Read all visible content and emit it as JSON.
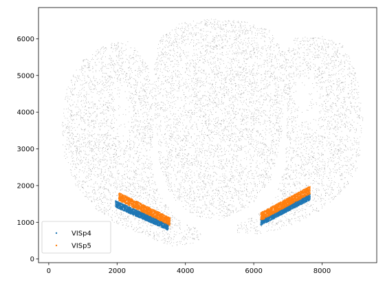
{
  "chart_data": {
    "type": "scatter",
    "title": "",
    "xlabel": "",
    "ylabel": "",
    "xlim": [
      -300,
      9600
    ],
    "ylim": [
      -100,
      6850
    ],
    "x_ticks": [
      0,
      2000,
      4000,
      6000,
      8000
    ],
    "y_ticks": [
      0,
      1000,
      2000,
      3000,
      4000,
      5000,
      6000
    ],
    "grid": false,
    "legend_position": "lower-left",
    "background_cells": {
      "color": "#808080",
      "description_region": "brain section outline",
      "x_range": [
        250,
        9200
      ],
      "y_range": [
        300,
        6550
      ]
    },
    "series": [
      {
        "name": "VISp4",
        "color": "#1f77b4",
        "bands": [
          {
            "x": [
              1950,
              3500
            ],
            "y_center_start": 1500,
            "y_center_end": 870,
            "half_width": 90
          },
          {
            "x": [
              6200,
              7650
            ],
            "y_center_start": 1000,
            "y_center_end": 1700,
            "half_width": 90
          }
        ]
      },
      {
        "name": "VISp5",
        "color": "#ff7f0e",
        "bands": [
          {
            "x": [
              2050,
              3550
            ],
            "y_center_start": 1700,
            "y_center_end": 1020,
            "half_width": 110
          },
          {
            "x": [
              6200,
              7650
            ],
            "y_center_start": 1150,
            "y_center_end": 1880,
            "half_width": 110
          }
        ]
      }
    ]
  }
}
